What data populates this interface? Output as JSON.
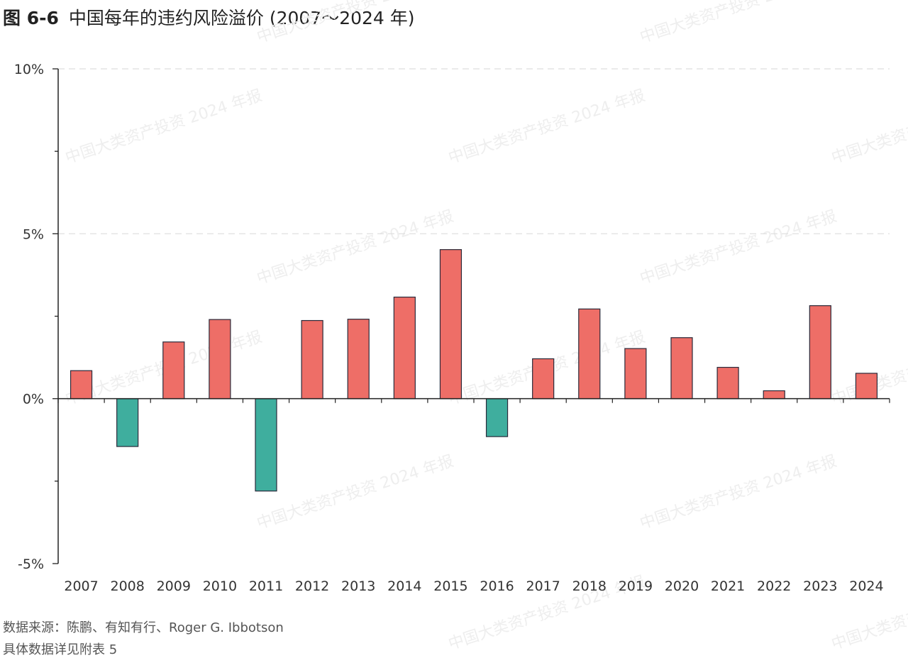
{
  "figure": {
    "number": "图 6-6",
    "title": "中国每年的违约风险溢价 (2007～2024 年)",
    "source": "数据来源：陈鹏、有知有行、Roger G. Ibbotson",
    "note": "具体数据详见附表 5",
    "watermark": "中国大类资产投资 2024 年报"
  },
  "chart_data": {
    "type": "bar",
    "title": "中国每年的违约风险溢价 (2007～2024 年)",
    "xlabel": "",
    "ylabel": "",
    "categories": [
      "2007",
      "2008",
      "2009",
      "2010",
      "2011",
      "2012",
      "2013",
      "2014",
      "2015",
      "2016",
      "2017",
      "2018",
      "2019",
      "2020",
      "2021",
      "2022",
      "2023",
      "2024"
    ],
    "values": [
      0.85,
      -1.45,
      1.72,
      2.4,
      -2.8,
      2.37,
      2.41,
      3.08,
      4.52,
      -1.15,
      1.21,
      2.72,
      1.52,
      1.85,
      0.95,
      0.24,
      2.82,
      0.77
    ],
    "ylim": [
      -5,
      10
    ],
    "yticks": [
      -5,
      0,
      5,
      10
    ],
    "ytick_labels": [
      "-5%",
      "0%",
      "5%",
      "10%"
    ],
    "grid": "horizontal dashed",
    "legend": "none",
    "colors": {
      "positive": "#EE6E67",
      "negative": "#3FAE9E",
      "bar_edge": "#2A2A3A",
      "axis": "#222222",
      "grid": "#DDDDDD",
      "watermark": "#EEEEEE"
    }
  }
}
